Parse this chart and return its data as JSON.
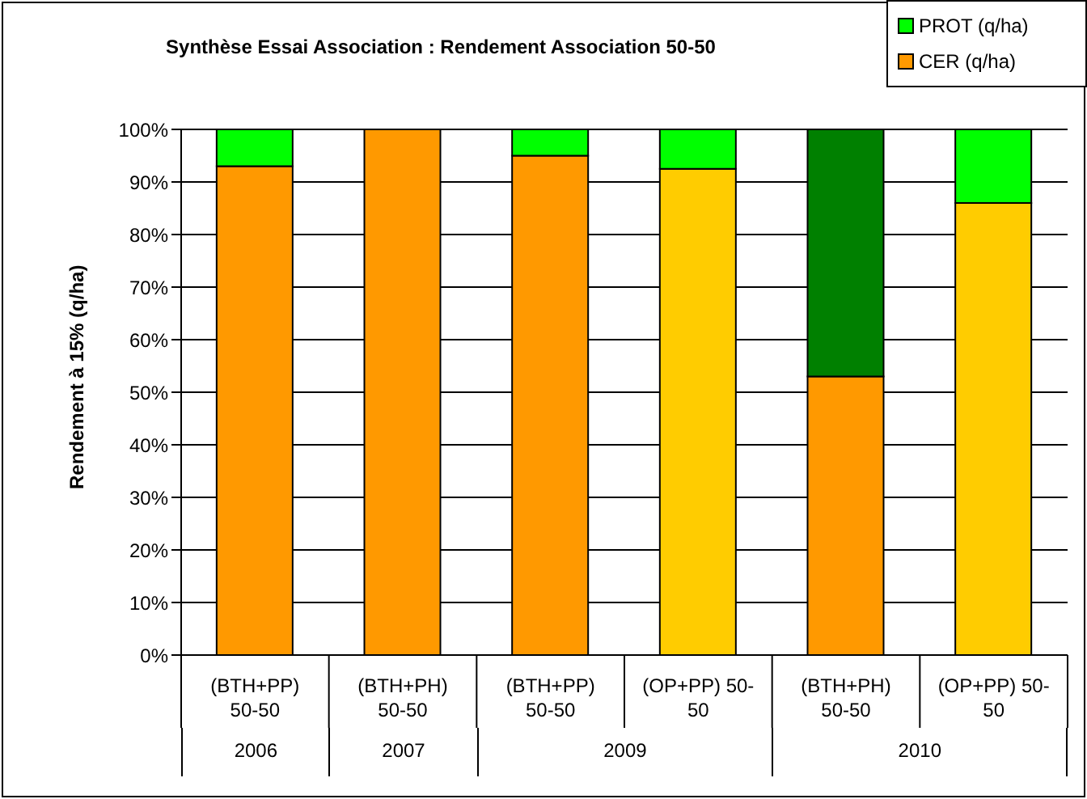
{
  "chart_data": {
    "type": "bar",
    "stacked": true,
    "title": "Synthèse Essai Association : Rendement Association 50-50",
    "ylabel": "Rendement à 15% (q/ha)",
    "categories": [
      "(BTH+PP) 50-50",
      "(BTH+PH) 50-50",
      "(BTH+PP) 50-50",
      "(OP+PP) 50-50",
      "(BTH+PH) 50-50",
      "(OP+PP) 50-50"
    ],
    "series": [
      {
        "name": "CER (q/ha)",
        "color": "#ff9900",
        "colors": [
          "#ff9900",
          "#ff9900",
          "#ff9900",
          "#ffcc00",
          "#ff9900",
          "#ffcc00"
        ],
        "values": [
          93,
          100,
          95,
          92.5,
          53,
          86
        ]
      },
      {
        "name": "PROT (q/ha)",
        "color": "#00ff00",
        "colors": [
          "#00ff00",
          "#00ff00",
          "#00ff00",
          "#00ff00",
          "#008000",
          "#00ff00"
        ],
        "values": [
          7,
          0,
          5,
          7.5,
          47,
          14
        ]
      }
    ],
    "ylim": [
      0,
      100
    ],
    "yticks": [
      {
        "value": 0,
        "label": "0%"
      },
      {
        "value": 10,
        "label": "10%"
      },
      {
        "value": 20,
        "label": "20%"
      },
      {
        "value": 30,
        "label": "30%"
      },
      {
        "value": 40,
        "label": "40%"
      },
      {
        "value": 50,
        "label": "50%"
      },
      {
        "value": 60,
        "label": "60%"
      },
      {
        "value": 70,
        "label": "70%"
      },
      {
        "value": 80,
        "label": "80%"
      },
      {
        "value": 90,
        "label": "90%"
      },
      {
        "value": 100,
        "label": "100%"
      }
    ],
    "grid": "y",
    "legend": "top right",
    "annotations": [
      "2006",
      "2007",
      "2009",
      "2010"
    ]
  }
}
